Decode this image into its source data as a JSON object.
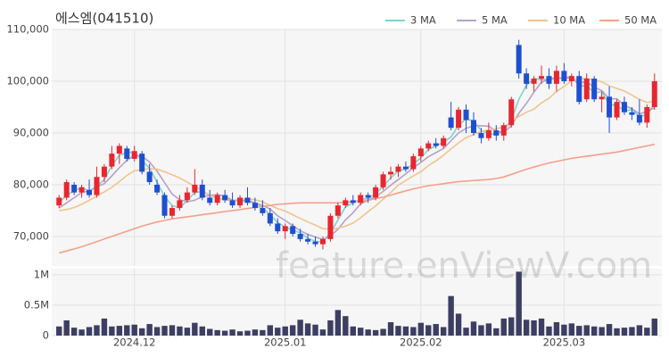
{
  "chart_data": {
    "type": "candlestick",
    "title": "에스엠(041510)",
    "watermark": "feature.enViewV.com",
    "categories": [
      null,
      null,
      null,
      null,
      null,
      null,
      null,
      null,
      null,
      null,
      "2024.12",
      null,
      null,
      null,
      null,
      null,
      null,
      null,
      null,
      null,
      null,
      null,
      null,
      null,
      null,
      null,
      null,
      null,
      null,
      null,
      "2025.01",
      null,
      null,
      null,
      null,
      null,
      null,
      null,
      null,
      null,
      null,
      null,
      null,
      null,
      null,
      null,
      null,
      null,
      "2025.02",
      null,
      null,
      null,
      null,
      null,
      null,
      null,
      null,
      null,
      null,
      null,
      null,
      null,
      null,
      null,
      null,
      null,
      null,
      "2025.03",
      null,
      null,
      null,
      null,
      null,
      null,
      null,
      null,
      null,
      null,
      null,
      null
    ],
    "open": [
      76000,
      77500,
      80000,
      78500,
      79000,
      78000,
      81500,
      83500,
      86000,
      87000,
      85000,
      86000,
      82500,
      80000,
      78000,
      74000,
      75500,
      77000,
      78500,
      80000,
      77500,
      76500,
      78000,
      77000,
      76000,
      77500,
      76500,
      75500,
      74500,
      72500,
      71000,
      72000,
      70500,
      69500,
      69000,
      68500,
      69500,
      74000,
      76000,
      77000,
      76500,
      78000,
      77500,
      79500,
      82000,
      82500,
      83500,
      83000,
      85500,
      87000,
      88000,
      87500,
      93000,
      91000,
      94500,
      92500,
      90000,
      89000,
      90500,
      89500,
      91500,
      107000,
      101500,
      99500,
      100500,
      101000,
      99500,
      102000,
      100000,
      101000,
      96500,
      100500,
      96500,
      97000,
      93000,
      96000,
      94000,
      93500,
      92000,
      95000
    ],
    "high": [
      78000,
      81000,
      80500,
      80000,
      81000,
      83500,
      84000,
      87500,
      88000,
      87500,
      87500,
      86500,
      84000,
      81000,
      78500,
      76000,
      78000,
      79500,
      83000,
      81000,
      79000,
      78500,
      79000,
      78500,
      78000,
      79500,
      77500,
      77000,
      75500,
      73500,
      72500,
      72500,
      71500,
      70500,
      70000,
      70000,
      74500,
      76500,
      77500,
      78000,
      78500,
      78500,
      80000,
      82500,
      83500,
      84000,
      84500,
      86000,
      87500,
      88500,
      89000,
      89500,
      96000,
      95000,
      95500,
      94000,
      91000,
      92000,
      91500,
      92000,
      97000,
      108000,
      102500,
      101000,
      103000,
      102500,
      103000,
      103500,
      101500,
      102000,
      101500,
      101000,
      98000,
      99000,
      96500,
      97000,
      95000,
      96500,
      95500,
      101500
    ],
    "low": [
      75500,
      77000,
      78000,
      77500,
      77500,
      77500,
      80500,
      83000,
      84000,
      84500,
      84500,
      82000,
      80000,
      78000,
      73500,
      73500,
      75000,
      76500,
      78000,
      77000,
      76000,
      76000,
      76500,
      75500,
      75500,
      76000,
      75000,
      74000,
      72000,
      70500,
      69500,
      70000,
      69000,
      68500,
      68000,
      67500,
      69000,
      73500,
      75500,
      76000,
      76000,
      76500,
      77000,
      79000,
      81000,
      81500,
      82500,
      82500,
      84500,
      86500,
      87000,
      87000,
      90500,
      90500,
      90000,
      89500,
      88000,
      88500,
      88500,
      88500,
      91000,
      100500,
      98500,
      98000,
      99500,
      98500,
      98000,
      99500,
      99000,
      95500,
      96000,
      96000,
      94000,
      90000,
      92500,
      93500,
      92500,
      91500,
      91000,
      94500
    ],
    "close": [
      77500,
      80500,
      78500,
      79500,
      78000,
      81500,
      83500,
      86000,
      87500,
      85000,
      86500,
      82500,
      80500,
      78500,
      74000,
      75500,
      77000,
      78500,
      80000,
      77500,
      76500,
      78000,
      77000,
      76000,
      77500,
      76500,
      75500,
      74500,
      72500,
      71000,
      72000,
      70500,
      69500,
      69000,
      68500,
      69500,
      74000,
      76000,
      77000,
      76500,
      78000,
      77500,
      79500,
      82000,
      82500,
      83500,
      83000,
      85500,
      87000,
      88000,
      87500,
      89000,
      91000,
      94500,
      92500,
      90000,
      89000,
      90500,
      89500,
      91500,
      96500,
      101500,
      99500,
      100500,
      101000,
      99500,
      102000,
      100000,
      101000,
      96000,
      100500,
      96500,
      97000,
      93000,
      96000,
      94000,
      93500,
      92000,
      95000,
      100000
    ],
    "up_color": "#e8262f",
    "down_color": "#1f4fd1",
    "series": [
      {
        "name": "3 MA",
        "color": "#7fd3cf",
        "values": [
          76500,
          78000,
          78800,
          79500,
          78700,
          79700,
          81000,
          83700,
          85700,
          86200,
          86300,
          84700,
          83200,
          80500,
          77700,
          76000,
          75500,
          77000,
          78500,
          78700,
          78000,
          77300,
          77200,
          77000,
          76800,
          76700,
          76500,
          75500,
          74200,
          72700,
          71800,
          71200,
          70700,
          69700,
          69000,
          69000,
          70700,
          73200,
          75700,
          76500,
          77200,
          77300,
          78300,
          79700,
          81300,
          82700,
          83000,
          84000,
          85200,
          86800,
          87500,
          88200,
          89200,
          91500,
          92700,
          92300,
          90500,
          89800,
          89700,
          90500,
          92500,
          96500,
          99200,
          100500,
          100300,
          100300,
          100800,
          100500,
          101000,
          99000,
          99200,
          97700,
          98000,
          95500,
          95300,
          94300,
          94500,
          93200,
          93500,
          95700
        ]
      },
      {
        "name": "5 MA",
        "color": "#b4a2c8",
        "values": [
          75500,
          76500,
          77500,
          78500,
          78800,
          79600,
          80200,
          81700,
          83300,
          84700,
          85700,
          85500,
          84400,
          82600,
          80400,
          78200,
          77100,
          76700,
          77000,
          77700,
          77900,
          78100,
          77800,
          77000,
          77000,
          77000,
          76500,
          76000,
          75300,
          74000,
          73100,
          72100,
          71100,
          70400,
          69900,
          69400,
          70100,
          71400,
          73200,
          74600,
          76300,
          77000,
          77700,
          78700,
          79900,
          81000,
          82100,
          83300,
          84300,
          85400,
          86200,
          87000,
          88500,
          90000,
          90900,
          91400,
          91400,
          91300,
          90300,
          90100,
          91400,
          93800,
          95700,
          97900,
          99800,
          100400,
          100500,
          100600,
          100700,
          99700,
          99900,
          98800,
          98200,
          96600,
          96600,
          95300,
          94700,
          93700,
          94100,
          94900
        ]
      },
      {
        "name": "10 MA",
        "color": "#f2c38f",
        "values": [
          75000,
          75200,
          75600,
          76200,
          77000,
          77800,
          78600,
          79500,
          80600,
          81800,
          82700,
          82900,
          83100,
          83000,
          82500,
          81900,
          81300,
          80500,
          79700,
          78900,
          77900,
          77500,
          77100,
          76900,
          77200,
          77300,
          77100,
          76700,
          76000,
          75400,
          74900,
          74200,
          73500,
          72800,
          72200,
          71500,
          71400,
          71600,
          72000,
          72600,
          73600,
          74800,
          75900,
          77200,
          78500,
          79900,
          80800,
          81700,
          82500,
          83700,
          84600,
          85700,
          86900,
          88100,
          89100,
          89700,
          90300,
          90600,
          90800,
          91200,
          92100,
          93200,
          94000,
          94600,
          95800,
          96700,
          98000,
          99000,
          100100,
          100500,
          100500,
          100200,
          99900,
          99100,
          98600,
          98100,
          97300,
          96500,
          95900,
          96100
        ]
      },
      {
        "name": "50 MA",
        "color": "#f4a08a",
        "values": [
          66800,
          67200,
          67600,
          68000,
          68500,
          69000,
          69500,
          70000,
          70500,
          71000,
          71500,
          72000,
          72400,
          72800,
          73100,
          73400,
          73600,
          73800,
          74000,
          74200,
          74400,
          74600,
          74800,
          75000,
          75200,
          75400,
          75600,
          75800,
          76000,
          76200,
          76300,
          76400,
          76500,
          76500,
          76500,
          76500,
          76500,
          76500,
          76600,
          76700,
          76800,
          77000,
          77300,
          77600,
          78000,
          78400,
          78800,
          79200,
          79500,
          79800,
          80000,
          80200,
          80400,
          80600,
          80700,
          80800,
          80900,
          81000,
          81200,
          81500,
          82000,
          82500,
          83000,
          83400,
          83800,
          84200,
          84500,
          84800,
          85100,
          85300,
          85500,
          85700,
          85900,
          86100,
          86300,
          86600,
          86900,
          87200,
          87500,
          87800
        ]
      }
    ],
    "ylim": [
      64300,
      110000
    ],
    "yticks": [
      {
        "value": 70000,
        "label": "70,000"
      },
      {
        "value": 80000,
        "label": "80,000"
      },
      {
        "value": 90000,
        "label": "90,000"
      },
      {
        "value": 100000,
        "label": "100,000"
      },
      {
        "value": 110000,
        "label": "110,000"
      }
    ],
    "volume": [
      150000,
      250000,
      130000,
      100000,
      140000,
      170000,
      280000,
      150000,
      160000,
      170000,
      180000,
      120000,
      190000,
      140000,
      160000,
      170000,
      150000,
      130000,
      210000,
      150000,
      110000,
      90000,
      80000,
      100000,
      70000,
      80000,
      100000,
      90000,
      170000,
      130000,
      150000,
      170000,
      260000,
      200000,
      180000,
      100000,
      250000,
      420000,
      320000,
      150000,
      130000,
      100000,
      90000,
      110000,
      220000,
      160000,
      150000,
      140000,
      210000,
      170000,
      190000,
      140000,
      650000,
      360000,
      130000,
      230000,
      170000,
      200000,
      120000,
      280000,
      300000,
      1050000,
      260000,
      250000,
      280000,
      150000,
      220000,
      180000,
      200000,
      160000,
      170000,
      150000,
      140000,
      190000,
      120000,
      130000,
      140000,
      170000,
      130000,
      280000
    ],
    "volume_color": "#3c3f63",
    "volume_ylim": [
      0,
      1100000
    ],
    "volume_yticks": [
      0,
      {
        "value": 500000,
        "label": "0.5M"
      },
      {
        "value": 1000000,
        "label": "1M"
      }
    ],
    "grid": true,
    "legend": "top-right"
  }
}
